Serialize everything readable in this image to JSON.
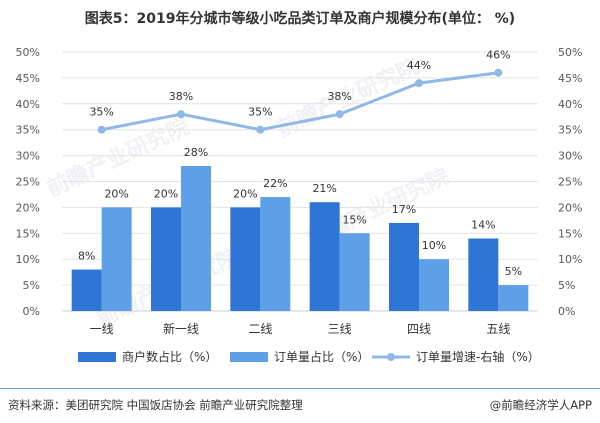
{
  "title": "图表5：2019年分城市等级小吃品类订单及商户规模分布(单位： %)",
  "footer": {
    "source": "资料来源：美团研究院 中国饭店协会  前瞻产业研究院整理",
    "brand": "@前瞻经济学人APP"
  },
  "watermark": "前瞻产业研究院",
  "colors": {
    "merchant": "#2e75d6",
    "order": "#5ea0e8",
    "growth": "#8fb8e6",
    "grid": "#e3e3e3",
    "text": "#595959"
  },
  "chart_data": {
    "type": "bar",
    "categories": [
      "一线",
      "新一线",
      "二线",
      "三线",
      "四线",
      "五线"
    ],
    "series": [
      {
        "name": "商户数占比（%）",
        "type": "bar",
        "axis": "left",
        "values": [
          8,
          20,
          20,
          21,
          17,
          14
        ],
        "labels": [
          "8%",
          "20%",
          "20%",
          "21%",
          "17%",
          "14%"
        ]
      },
      {
        "name": "订单量占比（%）",
        "type": "bar",
        "axis": "left",
        "values": [
          20,
          28,
          22,
          15,
          10,
          5
        ],
        "labels": [
          "20%",
          "28%",
          "22%",
          "15%",
          "10%",
          "5%"
        ]
      },
      {
        "name": "订单量增速-右轴（%）",
        "type": "line",
        "axis": "right",
        "values": [
          35,
          38,
          35,
          38,
          44,
          46
        ],
        "labels": [
          "35%",
          "38%",
          "35%",
          "38%",
          "44%",
          "46%"
        ]
      }
    ],
    "y_left": {
      "min": 0,
      "max": 50,
      "ticks": [
        "0%",
        "5%",
        "10%",
        "15%",
        "20%",
        "25%",
        "30%",
        "35%",
        "40%",
        "45%",
        "50%"
      ]
    },
    "y_right": {
      "min": 0,
      "max": 50,
      "ticks": [
        "0%",
        "5%",
        "10%",
        "15%",
        "20%",
        "25%",
        "30%",
        "35%",
        "40%",
        "45%",
        "50%"
      ]
    },
    "grid": true,
    "legend_position": "bottom"
  }
}
